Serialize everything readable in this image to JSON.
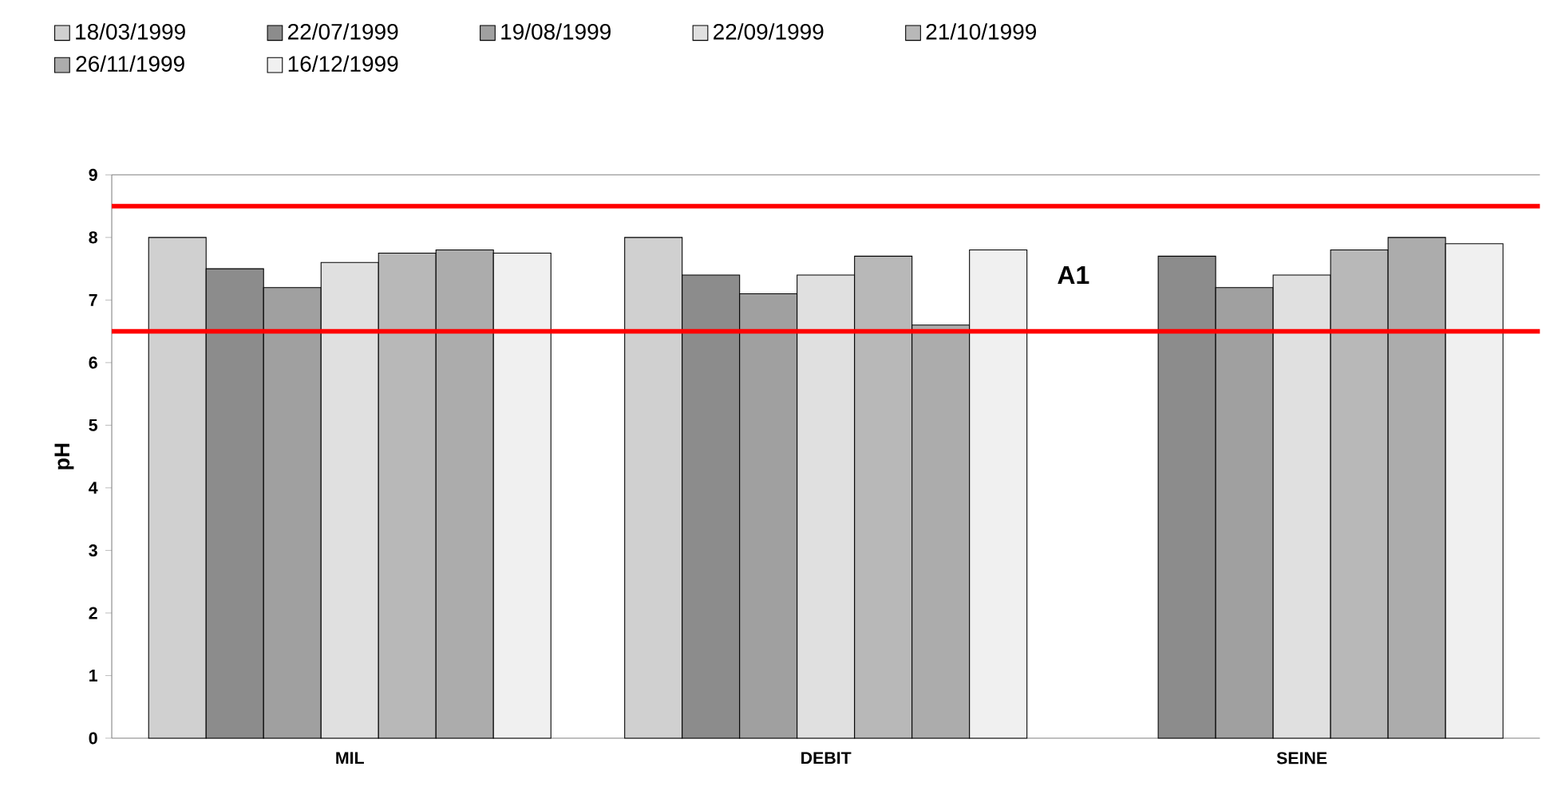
{
  "chart_data": {
    "type": "bar",
    "ylabel": "pH",
    "categories": [
      "MIL",
      "DEBIT",
      "SEINE"
    ],
    "series": [
      {
        "name": "18/03/1999",
        "color": "#d0d0d0",
        "values": [
          8.0,
          8.0,
          null
        ]
      },
      {
        "name": "22/07/1999",
        "color": "#8c8c8c",
        "values": [
          7.5,
          7.4,
          7.7
        ]
      },
      {
        "name": "19/08/1999",
        "color": "#a0a0a0",
        "values": [
          7.2,
          7.1,
          7.2
        ]
      },
      {
        "name": "22/09/1999",
        "color": "#e0e0e0",
        "values": [
          7.6,
          7.4,
          7.4
        ]
      },
      {
        "name": "21/10/1999",
        "color": "#b8b8b8",
        "values": [
          7.75,
          7.7,
          7.8
        ]
      },
      {
        "name": "26/11/1999",
        "color": "#acacac",
        "values": [
          7.8,
          6.6,
          8.0
        ]
      },
      {
        "name": "16/12/1999",
        "color": "#f0f0f0",
        "values": [
          7.75,
          7.8,
          7.9
        ]
      }
    ],
    "ylim": [
      0,
      9
    ],
    "yticks": [
      0,
      1,
      2,
      3,
      4,
      5,
      6,
      7,
      8,
      9
    ],
    "ref_lines": [
      {
        "axis": "y",
        "value": 8.5,
        "color": "#ff0000"
      },
      {
        "axis": "y",
        "value": 6.5,
        "color": "#ff0000"
      }
    ],
    "annotations": [
      "A1"
    ],
    "legend": "top",
    "grid": false
  }
}
